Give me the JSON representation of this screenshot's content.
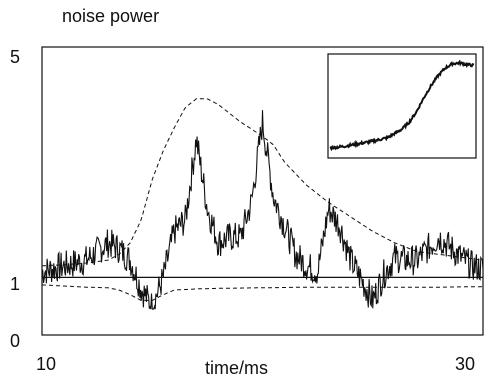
{
  "chart_data": {
    "type": "line",
    "title": "noise power",
    "xlabel": "time/ms",
    "ylabel": "",
    "xlim": [
      10,
      30
    ],
    "ylim": [
      0,
      5
    ],
    "x_tick_labels": [
      {
        "value": 10,
        "label": "10"
      },
      {
        "value": 30,
        "label": "30"
      }
    ],
    "y_tick_labels": [
      {
        "value": 5,
        "label": "5"
      },
      {
        "value": 1,
        "label": "1"
      },
      {
        "value": 0,
        "label": "0"
      }
    ],
    "reference_line": {
      "y": 1,
      "style": "solid"
    },
    "series": [
      {
        "style": "solid-noisy",
        "x": [
          10,
          11,
          12,
          13,
          13.5,
          14,
          14.5,
          15,
          15.5,
          16,
          16.5,
          17,
          17.5,
          18,
          18.5,
          19,
          19.5,
          20,
          20.5,
          21,
          21.5,
          22,
          22.5,
          23,
          23.5,
          24,
          24.5,
          25,
          25.5,
          26,
          26.5,
          27,
          28,
          29,
          29.5,
          30
        ],
        "y": [
          1.1,
          1.2,
          1.3,
          1.6,
          1.5,
          1.3,
          0.8,
          0.5,
          1.0,
          1.8,
          2.0,
          3.4,
          2.2,
          1.6,
          1.7,
          1.7,
          2.3,
          3.7,
          2.4,
          1.9,
          1.4,
          1.2,
          1.1,
          2.2,
          1.9,
          1.3,
          0.95,
          0.6,
          1.05,
          1.35,
          1.3,
          1.3,
          1.7,
          1.35,
          1.2,
          1.15
        ],
        "noise": 0.12
      },
      {
        "style": "dashed",
        "x": [
          10,
          11,
          12,
          13,
          13.5,
          14,
          14.5,
          15,
          15.5,
          16,
          16.5,
          17,
          17.5,
          18,
          18.5,
          19,
          20,
          20.5,
          21,
          22,
          23,
          24,
          25,
          26,
          27,
          28,
          29,
          30
        ],
        "y": [
          1.2,
          1.22,
          1.25,
          1.3,
          1.4,
          1.6,
          2.0,
          2.7,
          3.2,
          3.6,
          3.95,
          4.1,
          4.1,
          4.0,
          3.85,
          3.7,
          3.45,
          3.3,
          3.0,
          2.6,
          2.3,
          2.05,
          1.8,
          1.6,
          1.45,
          1.4,
          1.35,
          1.3
        ]
      },
      {
        "style": "dashed",
        "x": [
          10,
          11,
          12,
          13,
          13.5,
          14,
          14.5,
          15,
          15.5,
          16,
          17,
          18,
          20,
          22,
          24,
          26,
          28,
          30
        ],
        "y": [
          0.87,
          0.85,
          0.83,
          0.82,
          0.78,
          0.7,
          0.6,
          0.6,
          0.7,
          0.78,
          0.8,
          0.81,
          0.82,
          0.83,
          0.83,
          0.83,
          0.83,
          0.84
        ]
      }
    ],
    "inset": {
      "description_free": true,
      "curve": {
        "x": [
          0,
          0.1,
          0.2,
          0.3,
          0.4,
          0.45,
          0.5,
          0.55,
          0.6,
          0.65,
          0.7,
          0.75,
          0.8,
          0.85,
          0.9,
          0.95,
          1.0
        ],
        "y": [
          0.0,
          0.02,
          0.05,
          0.08,
          0.12,
          0.17,
          0.22,
          0.3,
          0.42,
          0.58,
          0.72,
          0.84,
          0.93,
          0.98,
          0.99,
          0.97,
          0.96
        ]
      },
      "noise": 0.015
    }
  }
}
